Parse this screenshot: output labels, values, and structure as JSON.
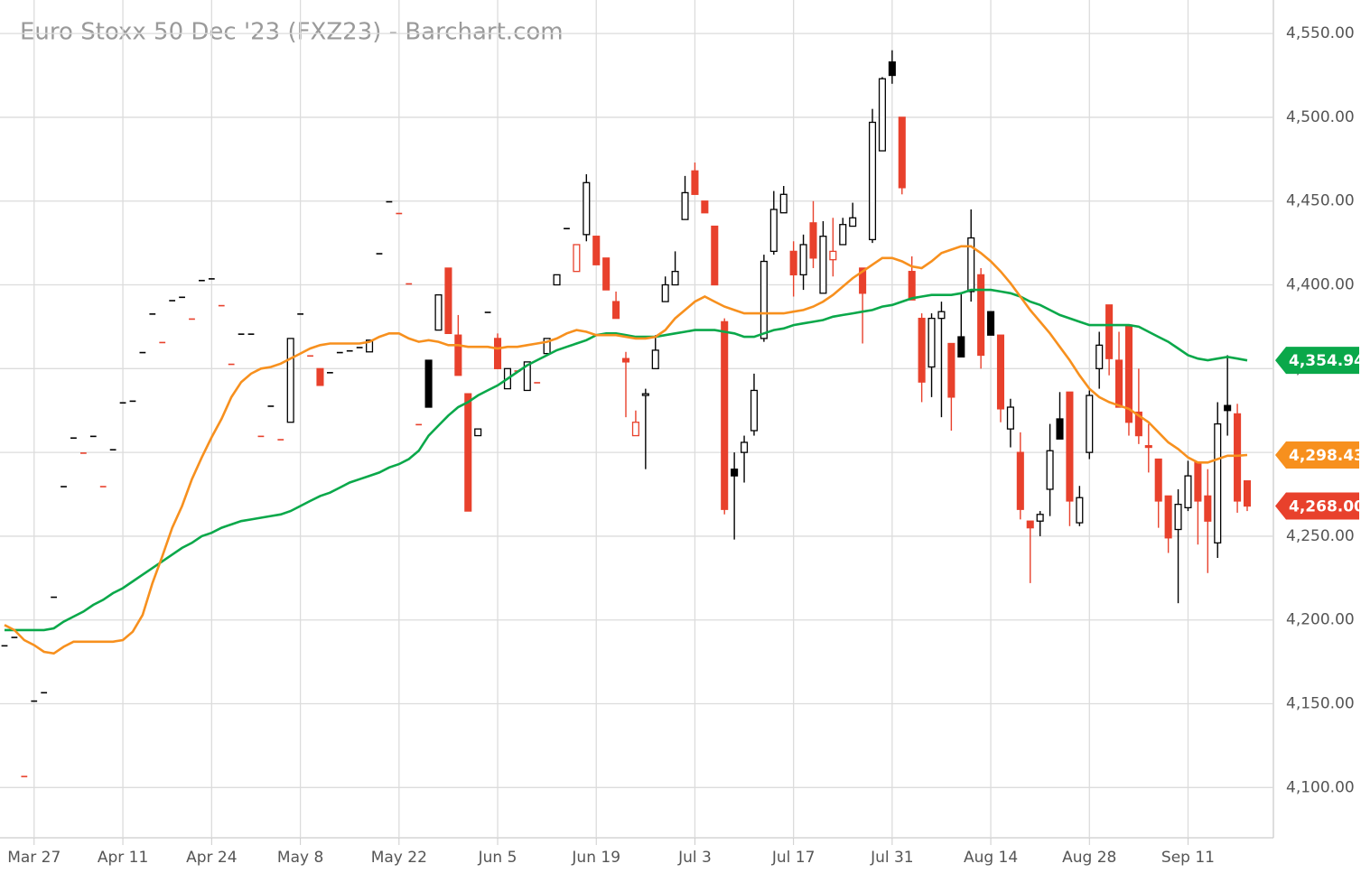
{
  "chart_data": {
    "type": "candlestick",
    "title": "Euro Stoxx 50 Dec '23 (FXZ23) - Barchart.com",
    "categories": [
      null,
      null,
      null,
      "Mar 27",
      null,
      null,
      null,
      null,
      null,
      null,
      null,
      null,
      "Apr 11",
      null,
      null,
      null,
      null,
      null,
      null,
      null,
      null,
      "Apr 24",
      null,
      null,
      null,
      null,
      null,
      null,
      null,
      null,
      "May 8",
      null,
      null,
      null,
      null,
      null,
      null,
      null,
      null,
      null,
      "May 22",
      null,
      null,
      null,
      null,
      null,
      null,
      null,
      null,
      null,
      "Jun 5",
      null,
      null,
      null,
      null,
      null,
      null,
      null,
      null,
      null,
      "Jun 19",
      null,
      null,
      null,
      null,
      null,
      null,
      null,
      null,
      null,
      "Jul 3",
      null,
      null,
      null,
      null,
      null,
      null,
      null,
      null,
      null,
      "Jul 17",
      null,
      null,
      null,
      null,
      null,
      null,
      null,
      null,
      null,
      "Jul 31",
      null,
      null,
      null,
      null,
      null,
      null,
      null,
      null,
      null,
      "Aug 14",
      null,
      null,
      null,
      null,
      null,
      null,
      null,
      null,
      null,
      "Aug 28",
      null,
      null,
      null,
      null,
      null,
      null,
      null,
      null,
      null,
      "Sep 11",
      null,
      null,
      null,
      null,
      null,
      null
    ],
    "open": [
      4185,
      4190,
      4107,
      4152,
      4157,
      4214,
      4280,
      4309,
      4300,
      4310,
      4280,
      4302,
      4330,
      4331,
      4360,
      4383,
      4366,
      4391,
      4393,
      4380,
      4403,
      4404,
      4388,
      4353,
      4371,
      4371,
      4310,
      4328,
      4308,
      4318,
      4383,
      4358,
      4350,
      4348,
      4360,
      4361,
      4363,
      4360,
      4419,
      4450,
      4443,
      4401,
      4317,
      4355,
      4373,
      4410,
      4370,
      4335,
      4310,
      4384,
      4368,
      4338,
      4349,
      4337,
      4342,
      4359,
      4400,
      4434,
      4408,
      4430,
      4429,
      4416,
      4390,
      4356,
      4310,
      4334,
      4350,
      4390,
      4400,
      4439,
      4468,
      4450,
      4435,
      4378,
      4290,
      4300,
      4313,
      4368,
      4420,
      4443,
      4420,
      4406,
      4437,
      4395,
      4415,
      4424,
      4435,
      4410,
      4427,
      4480,
      4533,
      4500,
      4408,
      4380,
      4351,
      4380,
      4365,
      4369,
      4396,
      4406,
      4384,
      4370,
      4314,
      4300,
      4259,
      4259,
      4278,
      4320,
      4336,
      4258,
      4300,
      4350,
      4388,
      4355,
      4376,
      4324,
      4304,
      4296,
      4274,
      4254,
      4267,
      4294,
      4274,
      4246,
      4328,
      4323,
      4283
    ],
    "high": [
      4185,
      4190,
      4107,
      4152,
      4157,
      4214,
      4280,
      4309,
      4300,
      4310,
      4280,
      4302,
      4330,
      4331,
      4360,
      4383,
      4366,
      4391,
      4393,
      4380,
      4403,
      4404,
      4388,
      4353,
      4371,
      4371,
      4310,
      4328,
      4308,
      4368,
      4383,
      4358,
      4350,
      4348,
      4360,
      4361,
      4363,
      4367,
      4419,
      4450,
      4443,
      4401,
      4317,
      4355,
      4394,
      4410,
      4382,
      4335,
      4314,
      4384,
      4371,
      4350,
      4349,
      4354,
      4342,
      4368,
      4406,
      4434,
      4424,
      4466,
      4429,
      4416,
      4396,
      4360,
      4325,
      4338,
      4370,
      4405,
      4420,
      4465,
      4473,
      4450,
      4435,
      4380,
      4300,
      4310,
      4347,
      4418,
      4456,
      4459,
      4426,
      4430,
      4450,
      4438,
      4440,
      4440,
      4449,
      4410,
      4505,
      4524,
      4540,
      4500,
      4417,
      4383,
      4383,
      4390,
      4365,
      4395,
      4445,
      4410,
      4384,
      4370,
      4332,
      4312,
      4259,
      4265,
      4317,
      4336,
      4336,
      4280,
      4337,
      4372,
      4388,
      4372,
      4376,
      4350,
      4317,
      4296,
      4274,
      4278,
      4295,
      4294,
      4290,
      4330,
      4358,
      4329,
      4283
    ],
    "low": [
      4185,
      4190,
      4107,
      4152,
      4157,
      4214,
      4280,
      4309,
      4300,
      4310,
      4280,
      4302,
      4330,
      4331,
      4360,
      4383,
      4366,
      4391,
      4393,
      4380,
      4403,
      4404,
      4388,
      4353,
      4371,
      4371,
      4310,
      4328,
      4308,
      4318,
      4383,
      4358,
      4340,
      4348,
      4360,
      4361,
      4363,
      4360,
      4419,
      4450,
      4443,
      4401,
      4317,
      4327,
      4373,
      4371,
      4346,
      4265,
      4310,
      4384,
      4350,
      4338,
      4349,
      4337,
      4342,
      4359,
      4400,
      4434,
      4408,
      4426,
      4412,
      4397,
      4380,
      4321,
      4310,
      4290,
      4350,
      4390,
      4400,
      4439,
      4454,
      4443,
      4400,
      4263,
      4248,
      4282,
      4310,
      4366,
      4418,
      4443,
      4393,
      4397,
      4410,
      4395,
      4405,
      4424,
      4435,
      4365,
      4425,
      4480,
      4520,
      4454,
      4391,
      4330,
      4333,
      4321,
      4313,
      4357,
      4390,
      4350,
      4370,
      4318,
      4303,
      4260,
      4222,
      4250,
      4262,
      4308,
      4256,
      4256,
      4296,
      4338,
      4346,
      4327,
      4310,
      4305,
      4288,
      4255,
      4240,
      4210,
      4265,
      4245,
      4228,
      4237,
      4310,
      4264,
      4265
    ],
    "close": [
      4185,
      4190,
      4107,
      4152,
      4157,
      4214,
      4280,
      4309,
      4300,
      4310,
      4280,
      4302,
      4330,
      4331,
      4360,
      4383,
      4366,
      4391,
      4393,
      4380,
      4403,
      4404,
      4388,
      4353,
      4371,
      4371,
      4310,
      4328,
      4308,
      4368,
      4383,
      4358,
      4340,
      4348,
      4360,
      4361,
      4363,
      4367,
      4419,
      4450,
      4443,
      4401,
      4317,
      4327,
      4394,
      4371,
      4346,
      4265,
      4314,
      4384,
      4350,
      4350,
      4349,
      4354,
      4342,
      4368,
      4406,
      4434,
      4424,
      4461,
      4412,
      4397,
      4380,
      4354,
      4318,
      4335,
      4361,
      4400,
      4408,
      4455,
      4454,
      4443,
      4400,
      4266,
      4286,
      4306,
      4337,
      4414,
      4445,
      4454,
      4406,
      4424,
      4416,
      4429,
      4420,
      4436,
      4440,
      4395,
      4497,
      4523,
      4525,
      4458,
      4391,
      4342,
      4380,
      4384,
      4333,
      4357,
      4428,
      4358,
      4370,
      4326,
      4327,
      4266,
      4255,
      4263,
      4301,
      4308,
      4271,
      4273,
      4334,
      4364,
      4356,
      4327,
      4318,
      4310,
      4303,
      4271,
      4249,
      4269,
      4286,
      4271,
      4259,
      4317,
      4325,
      4271,
      4268
    ],
    "last_label": "4,268.00",
    "up_color": "#000000",
    "down_color": "#e8412c",
    "overlays": [
      {
        "color": "#0aa84a",
        "last_label": "4,354.94",
        "values": [
          4194,
          4194,
          4194,
          4194,
          4194,
          4195,
          4199,
          4202,
          4205,
          4209,
          4212,
          4216,
          4219,
          4223,
          4227,
          4231,
          4235,
          4239,
          4243,
          4246,
          4250,
          4252,
          4255,
          4257,
          4259,
          4260,
          4261,
          4262,
          4263,
          4265,
          4268,
          4271,
          4274,
          4276,
          4279,
          4282,
          4284,
          4286,
          4288,
          4291,
          4293,
          4296,
          4301,
          4310,
          4316,
          4322,
          4327,
          4330,
          4334,
          4337,
          4340,
          4344,
          4348,
          4352,
          4355,
          4358,
          4361,
          4363,
          4365,
          4367,
          4370,
          4371,
          4371,
          4370,
          4369,
          4369,
          4369,
          4370,
          4371,
          4372,
          4373,
          4373,
          4373,
          4372,
          4371,
          4369,
          4369,
          4371,
          4373,
          4374,
          4376,
          4377,
          4378,
          4379,
          4381,
          4382,
          4383,
          4384,
          4385,
          4387,
          4388,
          4390,
          4392,
          4393,
          4394,
          4394,
          4394,
          4395,
          4397,
          4397,
          4397,
          4396,
          4395,
          4393,
          4390,
          4388,
          4385,
          4382,
          4380,
          4378,
          4376,
          4376,
          4376,
          4376,
          4376,
          4375,
          4372,
          4369,
          4366,
          4362,
          4358,
          4356,
          4355,
          4356,
          4357,
          4356,
          4354.94
        ]
      },
      {
        "color": "#f7901e",
        "last_label": "4,298.43",
        "values": [
          4197,
          4194,
          4188,
          4185,
          4181,
          4180,
          4184,
          4187,
          4187,
          4187,
          4187,
          4187,
          4188,
          4193,
          4203,
          4222,
          4238,
          4255,
          4268,
          4284,
          4297,
          4309,
          4320,
          4333,
          4342,
          4347,
          4350,
          4351,
          4353,
          4356,
          4359,
          4362,
          4364,
          4365,
          4365,
          4365,
          4365,
          4366,
          4369,
          4371,
          4371,
          4368,
          4366,
          4367,
          4366,
          4364,
          4364,
          4363,
          4363,
          4363,
          4362,
          4363,
          4363,
          4364,
          4365,
          4366,
          4368,
          4371,
          4373,
          4372,
          4370,
          4370,
          4370,
          4369,
          4368,
          4368,
          4369,
          4373,
          4380,
          4385,
          4390,
          4393,
          4390,
          4387,
          4385,
          4383,
          4383,
          4383,
          4383,
          4383,
          4384,
          4385,
          4387,
          4390,
          4394,
          4399,
          4404,
          4408,
          4412,
          4416,
          4416,
          4414,
          4411,
          4410,
          4414,
          4419,
          4421,
          4423,
          4423,
          4419,
          4414,
          4408,
          4401,
          4393,
          4385,
          4378,
          4371,
          4363,
          4355,
          4346,
          4338,
          4333,
          4330,
          4328,
          4326,
          4322,
          4318,
          4312,
          4306,
          4302,
          4297,
          4294,
          4294,
          4296,
          4298,
          4298,
          4298.43
        ]
      }
    ],
    "ylim": [
      4070,
      4570
    ],
    "yticks": [
      {
        "value": 4100,
        "label": "4,100.00"
      },
      {
        "value": 4150,
        "label": "4,150.00"
      },
      {
        "value": 4200,
        "label": "4,200.00"
      },
      {
        "value": 4250,
        "label": "4,250.00"
      },
      {
        "value": 4300,
        "label": "4,300.00"
      },
      {
        "value": 4350,
        "label": "4,350.00"
      },
      {
        "value": 4400,
        "label": "4,400.00"
      },
      {
        "value": 4450,
        "label": "4,450.00"
      },
      {
        "value": 4500,
        "label": "4,500.00"
      },
      {
        "value": 4550,
        "label": "4,550.00"
      }
    ],
    "grid": true
  }
}
